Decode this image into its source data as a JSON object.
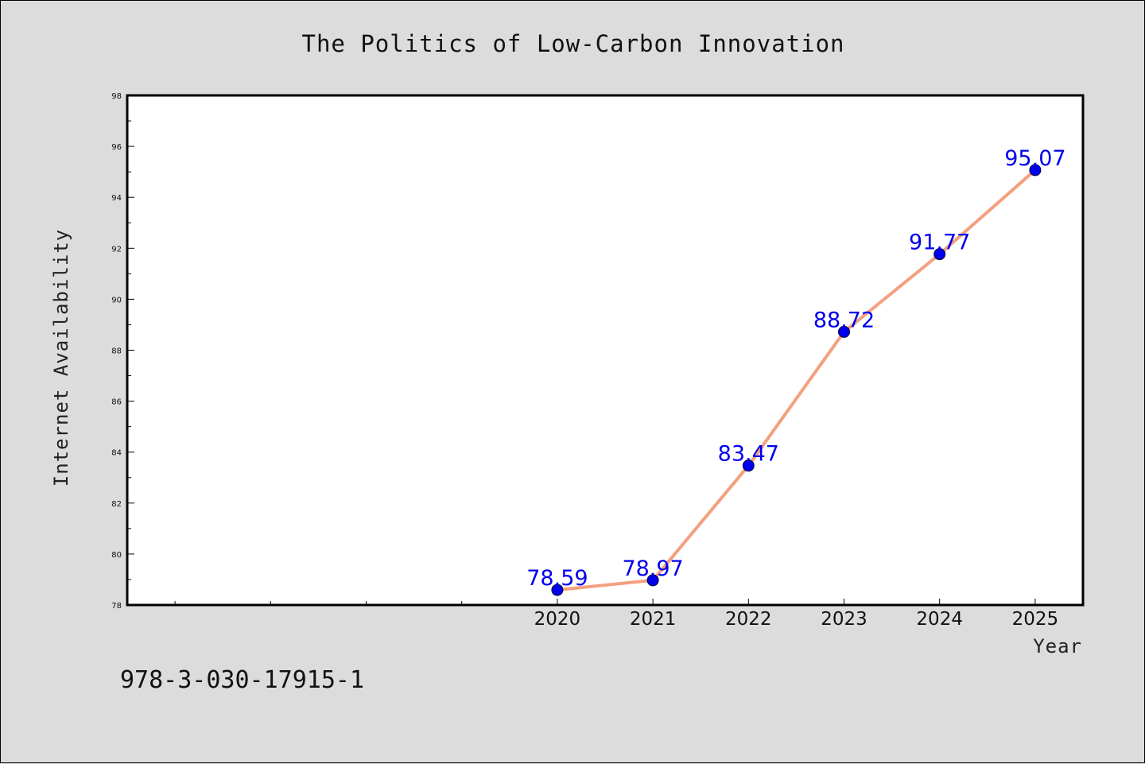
{
  "chart_data": {
    "type": "line",
    "title": "The Politics of Low-Carbon Innovation",
    "xlabel": "Year",
    "ylabel": "Internet Availability",
    "x": [
      2020,
      2021,
      2022,
      2023,
      2024,
      2025
    ],
    "series": [
      {
        "values": [
          78.59,
          78.97,
          83.47,
          88.72,
          91.77,
          95.07
        ]
      }
    ],
    "data_labels": [
      "78.59",
      "78.97",
      "83.47",
      "88.72",
      "91.77",
      "95.07"
    ],
    "xlim": [
      2015.5,
      2025.5
    ],
    "ylim": [
      78,
      98
    ],
    "yticks": [
      78,
      80,
      82,
      84,
      86,
      88,
      90,
      92,
      94,
      96,
      98
    ],
    "xticks_labeled": [
      2020,
      2021,
      2022,
      2023,
      2024,
      2025
    ],
    "xticks_minor": [
      2016,
      2017,
      2018,
      2019
    ],
    "grid": false,
    "line_color": "#f4a07e",
    "marker_color": "#0000ee",
    "label_color": "#0000ee"
  },
  "footer": {
    "text": "978-3-030-17915-1"
  }
}
